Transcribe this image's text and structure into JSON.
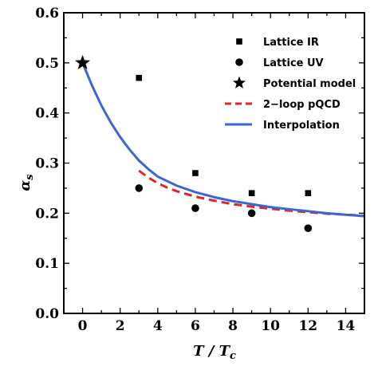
{
  "chart_data": {
    "type": "scatter",
    "xlabel": "T / T",
    "xlabel_sub": "c",
    "ylabel": "α",
    "ylabel_sub": "s",
    "xlim": [
      -1,
      15
    ],
    "ylim": [
      0.0,
      0.6
    ],
    "x_ticks": [
      "0",
      "2",
      "4",
      "6",
      "8",
      "10",
      "12",
      "14"
    ],
    "y_ticks": [
      "0.0",
      "0.1",
      "0.2",
      "0.3",
      "0.4",
      "0.5",
      "0.6"
    ],
    "legend_position": "top-right",
    "series": [
      {
        "name": "Lattice IR",
        "kind": "markers",
        "marker": "square",
        "color": "#000000",
        "x": [
          3,
          6,
          9,
          12
        ],
        "y": [
          0.47,
          0.28,
          0.24,
          0.24
        ]
      },
      {
        "name": "Lattice UV",
        "kind": "markers",
        "marker": "circle",
        "color": "#000000",
        "x": [
          3,
          6,
          9,
          12
        ],
        "y": [
          0.25,
          0.21,
          0.2,
          0.17
        ]
      },
      {
        "name": "Potential model",
        "kind": "markers",
        "marker": "star",
        "color": "#000000",
        "x": [
          0
        ],
        "y": [
          0.5
        ]
      },
      {
        "name": "2−loop pQCD",
        "kind": "line",
        "dash": "dashed",
        "color": "#e0262a",
        "x": [
          3,
          3.5,
          4,
          4.5,
          5,
          6,
          7,
          8,
          9,
          10,
          11,
          12,
          13,
          14,
          15
        ],
        "y": [
          0.285,
          0.271,
          0.26,
          0.251,
          0.244,
          0.233,
          0.225,
          0.218,
          0.213,
          0.209,
          0.205,
          0.202,
          0.199,
          0.197,
          0.195
        ]
      },
      {
        "name": "Interpolation",
        "kind": "line",
        "dash": "solid",
        "color": "#3b66d6",
        "x": [
          0,
          0.5,
          1,
          1.5,
          2,
          2.5,
          3,
          3.5,
          4,
          5,
          6,
          7,
          8,
          9,
          10,
          11,
          12,
          13,
          14,
          15
        ],
        "y": [
          0.5,
          0.455,
          0.415,
          0.381,
          0.352,
          0.327,
          0.305,
          0.288,
          0.273,
          0.255,
          0.242,
          0.232,
          0.224,
          0.218,
          0.212,
          0.208,
          0.204,
          0.2,
          0.197,
          0.194
        ]
      }
    ]
  }
}
